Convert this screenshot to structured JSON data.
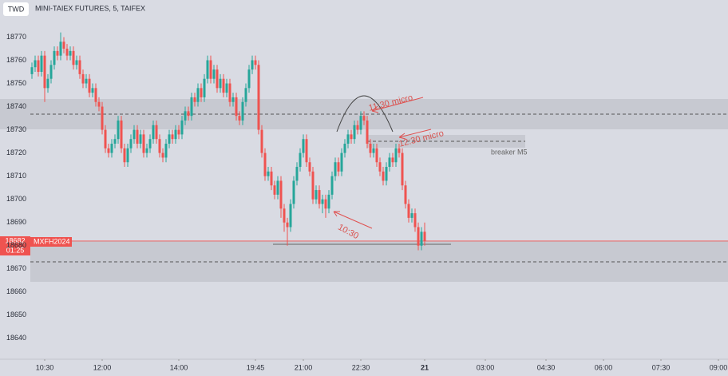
{
  "chart_data": {
    "type": "candlestick",
    "currency": "TWD",
    "title": "MINI-TAIEX FUTURES, 5, TAIFEX",
    "symbol": "MXFH2024",
    "countdown": "01:25",
    "up_color": "#26a69a",
    "down_color": "#ef5350",
    "ylim": [
      18631,
      18786
    ],
    "yticks": [
      18640,
      18650,
      18660,
      18670,
      18680,
      18690,
      18700,
      18710,
      18720,
      18730,
      18740,
      18750,
      18760,
      18770
    ],
    "xlim": [
      -0.5,
      215.5
    ],
    "xticks": [
      {
        "value": 4,
        "label": "10:30"
      },
      {
        "value": 22,
        "label": "12:00"
      },
      {
        "value": 46,
        "label": "14:00"
      },
      {
        "value": 70,
        "label": "19:45"
      },
      {
        "value": 85,
        "label": "21:00"
      },
      {
        "value": 103,
        "label": "22:30"
      },
      {
        "value": 123,
        "label": "21"
      },
      {
        "value": 142,
        "label": "03:00"
      },
      {
        "value": 161,
        "label": "04:30"
      },
      {
        "value": 179,
        "label": "06:00"
      },
      {
        "value": 197,
        "label": "07:30"
      },
      {
        "value": 215,
        "label": "09:00"
      }
    ],
    "open": [
      18754,
      18757,
      18760,
      18755,
      18762,
      18748,
      18752,
      18758,
      18764,
      18762,
      18768,
      18765,
      18762,
      18764,
      18758,
      18760,
      18754,
      18750,
      18752,
      18746,
      18748,
      18742,
      18740,
      18730,
      18722,
      18720,
      18724,
      18726,
      18734,
      18722,
      18716,
      18722,
      18726,
      18730,
      18724,
      18728,
      18720,
      18722,
      18726,
      18732,
      18726,
      18720,
      18718,
      18724,
      18728,
      18726,
      18730,
      18728,
      18734,
      18738,
      18736,
      18744,
      18742,
      18748,
      18744,
      18752,
      18760,
      18752,
      18756,
      18748,
      18752,
      18746,
      18750,
      18742,
      18744,
      18736,
      18734,
      18742,
      18748,
      18756,
      18760,
      18758,
      18730,
      18720,
      18710,
      18712,
      18706,
      18702,
      18708,
      18696,
      18690,
      18688,
      18698,
      18708,
      18714,
      18720,
      18726,
      18716,
      18712,
      18700,
      18704,
      18698,
      18700,
      18696,
      18702,
      18710,
      18716,
      18712,
      18720,
      18724,
      18728,
      18726,
      18732,
      18730,
      18736,
      18734,
      18724,
      18720,
      18722,
      18716,
      18712,
      18708,
      18714,
      18718,
      18716,
      18722,
      18720,
      18706,
      18698,
      18692,
      18694,
      18688,
      18680,
      18686
    ],
    "high": [
      18759,
      18762,
      18762,
      18764,
      18764,
      18754,
      18760,
      18766,
      18766,
      18772,
      18770,
      18767,
      18766,
      18766,
      18762,
      18762,
      18756,
      18754,
      18754,
      18750,
      18750,
      18744,
      18742,
      18732,
      18724,
      18726,
      18728,
      18736,
      18736,
      18724,
      18724,
      18728,
      18732,
      18732,
      18730,
      18730,
      18724,
      18728,
      18734,
      18734,
      18728,
      18722,
      18726,
      18730,
      18730,
      18732,
      18732,
      18736,
      18740,
      18740,
      18746,
      18746,
      18750,
      18750,
      18754,
      18762,
      18762,
      18758,
      18758,
      18754,
      18754,
      18752,
      18752,
      18746,
      18746,
      18738,
      18744,
      18750,
      18758,
      18762,
      18762,
      18760,
      18732,
      18722,
      18714,
      18714,
      18708,
      18710,
      18710,
      18698,
      18692,
      18700,
      18710,
      18716,
      18722,
      18728,
      18728,
      18718,
      18714,
      18706,
      18706,
      18702,
      18702,
      18704,
      18712,
      18718,
      18718,
      18722,
      18726,
      18730,
      18730,
      18734,
      18734,
      18738,
      18738,
      18736,
      18726,
      18724,
      18724,
      18718,
      18714,
      18716,
      18720,
      18720,
      18724,
      18724,
      18722,
      18708,
      18700,
      18696,
      18696,
      18690,
      18688,
      18690
    ],
    "low": [
      18752,
      18755,
      18753,
      18753,
      18742,
      18746,
      18750,
      18756,
      18760,
      18760,
      18763,
      18760,
      18760,
      18756,
      18756,
      18752,
      18748,
      18748,
      18744,
      18744,
      18740,
      18738,
      18728,
      18720,
      18718,
      18718,
      18722,
      18724,
      18720,
      18714,
      18714,
      18720,
      18724,
      18722,
      18722,
      18718,
      18718,
      18720,
      18724,
      18724,
      18718,
      18716,
      18716,
      18722,
      18724,
      18724,
      18726,
      18726,
      18732,
      18734,
      18734,
      18740,
      18740,
      18742,
      18742,
      18750,
      18750,
      18750,
      18746,
      18746,
      18744,
      18744,
      18740,
      18740,
      18734,
      18732,
      18732,
      18740,
      18746,
      18754,
      18756,
      18728,
      18718,
      18708,
      18708,
      18704,
      18700,
      18700,
      18692,
      18686,
      18680,
      18686,
      18696,
      18706,
      18712,
      18718,
      18714,
      18710,
      18698,
      18698,
      18696,
      18694,
      18692,
      18694,
      18700,
      18708,
      18710,
      18710,
      18718,
      18722,
      18724,
      18724,
      18728,
      18728,
      18732,
      18722,
      18718,
      18718,
      18714,
      18710,
      18706,
      18706,
      18712,
      18714,
      18714,
      18718,
      18704,
      18696,
      18690,
      18690,
      18686,
      18678,
      18678,
      18680
    ],
    "close": [
      18757,
      18760,
      18755,
      18762,
      18748,
      18752,
      18758,
      18764,
      18762,
      18768,
      18765,
      18762,
      18764,
      18758,
      18760,
      18754,
      18750,
      18752,
      18746,
      18748,
      18742,
      18740,
      18730,
      18722,
      18720,
      18724,
      18726,
      18734,
      18722,
      18716,
      18722,
      18726,
      18730,
      18724,
      18728,
      18720,
      18722,
      18726,
      18732,
      18726,
      18720,
      18718,
      18724,
      18728,
      18726,
      18730,
      18728,
      18734,
      18738,
      18736,
      18744,
      18742,
      18748,
      18744,
      18752,
      18760,
      18752,
      18756,
      18748,
      18752,
      18746,
      18750,
      18742,
      18744,
      18736,
      18734,
      18742,
      18748,
      18756,
      18760,
      18758,
      18730,
      18720,
      18710,
      18712,
      18706,
      18702,
      18708,
      18696,
      18690,
      18688,
      18698,
      18708,
      18714,
      18720,
      18726,
      18716,
      18712,
      18700,
      18704,
      18698,
      18700,
      18696,
      18702,
      18710,
      18716,
      18712,
      18720,
      18724,
      18728,
      18726,
      18732,
      18730,
      18736,
      18734,
      18724,
      18720,
      18722,
      18716,
      18712,
      18708,
      18714,
      18718,
      18716,
      18722,
      18720,
      18706,
      18698,
      18692,
      18694,
      18688,
      18680,
      18686,
      18682
    ],
    "annotations": [
      "11:30 micro",
      "12:30 micro",
      "10:30",
      "breaker M5"
    ]
  }
}
